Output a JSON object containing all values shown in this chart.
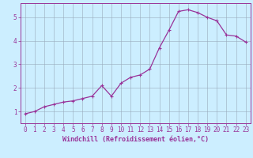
{
  "x": [
    0,
    1,
    2,
    3,
    4,
    5,
    6,
    7,
    8,
    9,
    10,
    11,
    12,
    13,
    14,
    15,
    16,
    17,
    18,
    19,
    20,
    21,
    22,
    23
  ],
  "y": [
    0.9,
    1.0,
    1.2,
    1.3,
    1.4,
    1.45,
    1.55,
    1.65,
    2.1,
    1.65,
    2.2,
    2.45,
    2.55,
    2.8,
    3.7,
    4.45,
    5.25,
    5.32,
    5.2,
    5.0,
    4.85,
    4.25,
    4.2,
    3.95
  ],
  "line_color": "#993399",
  "marker": "+",
  "marker_size": 3,
  "marker_lw": 0.8,
  "line_width": 0.9,
  "bg_color": "#cceeff",
  "grid_color": "#99aabb",
  "axis_color": "#993399",
  "xlabel": "Windchill (Refroidissement éolien,°C)",
  "xlim": [
    -0.5,
    23.5
  ],
  "ylim": [
    0.5,
    5.6
  ],
  "yticks": [
    1,
    2,
    3,
    4,
    5
  ],
  "xticks": [
    0,
    1,
    2,
    3,
    4,
    5,
    6,
    7,
    8,
    9,
    10,
    11,
    12,
    13,
    14,
    15,
    16,
    17,
    18,
    19,
    20,
    21,
    22,
    23
  ],
  "xlabel_fontsize": 6.0,
  "tick_fontsize": 5.5
}
